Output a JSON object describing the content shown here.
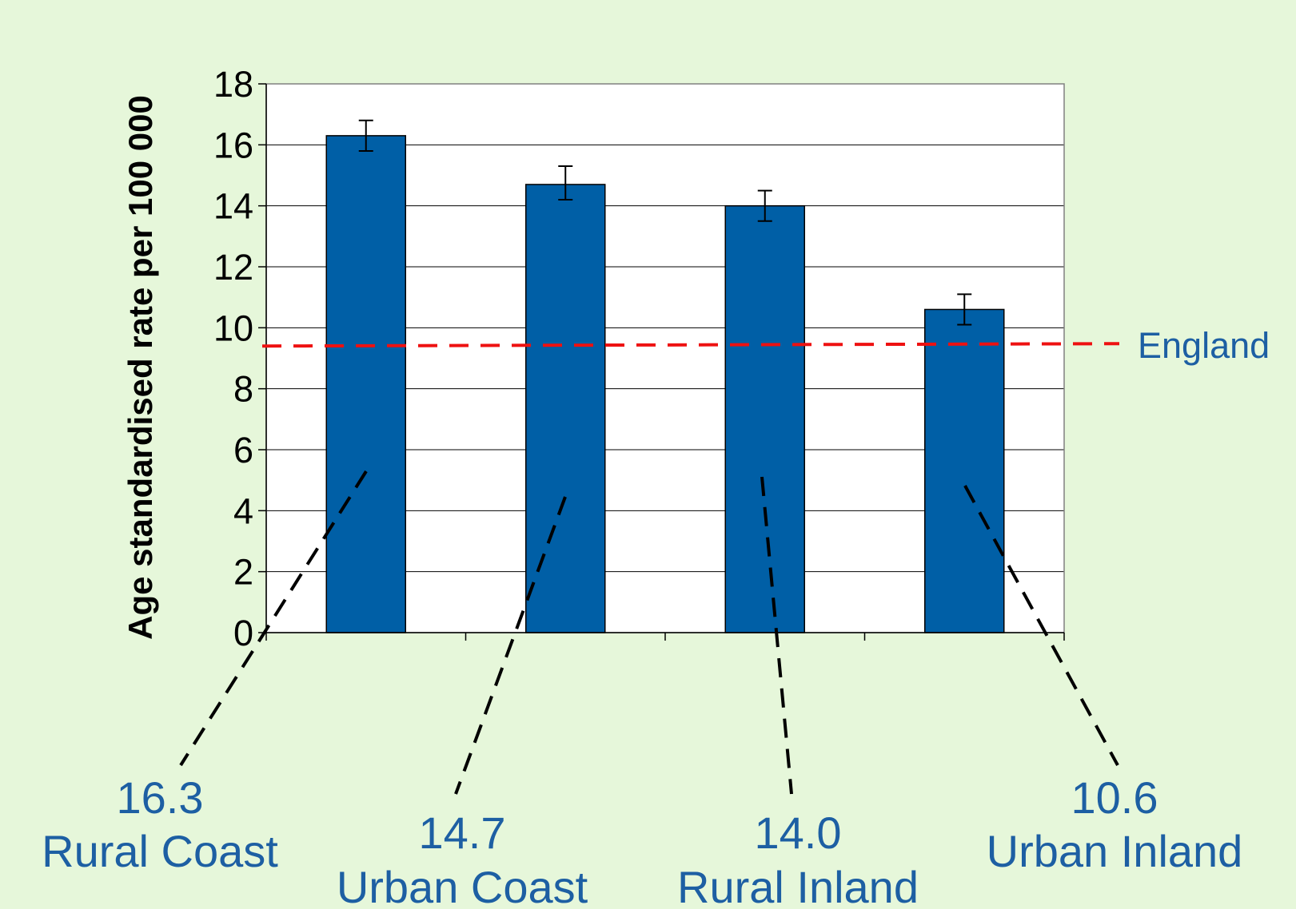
{
  "chart_data": {
    "type": "bar",
    "title": "",
    "xlabel": "",
    "ylabel": "Age standardised rate per 100 000",
    "ylim": [
      0,
      18
    ],
    "yticks": [
      0,
      2,
      4,
      6,
      8,
      10,
      12,
      14,
      16,
      18
    ],
    "grid": true,
    "bar_color": "#005fa6",
    "values": [
      16.3,
      14.7,
      14.0,
      10.6
    ],
    "error_bars": [
      [
        15.8,
        16.8
      ],
      [
        14.2,
        15.3
      ],
      [
        13.5,
        14.5
      ],
      [
        10.1,
        11.1
      ]
    ],
    "reference_line": {
      "label": "England",
      "value": 9.4,
      "color": "#ee1111"
    },
    "callouts": [
      {
        "value": "16.3",
        "name": "Rural Coast"
      },
      {
        "value": "14.7",
        "name": "Urban Coast"
      },
      {
        "value": "14.0",
        "name": "Rural Inland"
      },
      {
        "value": "10.6",
        "name": "Urban Inland"
      }
    ],
    "label_color": "#1d5fa3"
  }
}
